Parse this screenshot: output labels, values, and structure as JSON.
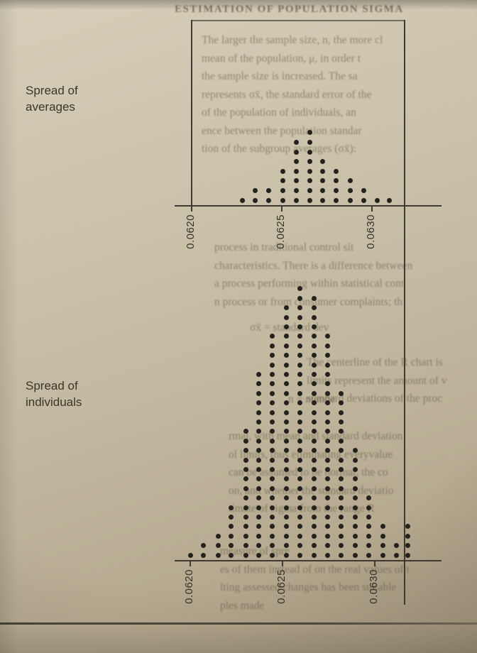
{
  "figure": {
    "averages_label": "Spread of\naverages",
    "individuals_label": "Spread of\nindividuals"
  },
  "colors": {
    "page_bg": "#c6bda6",
    "ink": "#3f3b33",
    "dot": "#24221d"
  },
  "ghost_text": {
    "heading": "ESTIMATION OF POPULATION SIGMA",
    "top_paragraph": [
      "The larger the sample size, n, the more cl",
      "mean of the population, μ, in order t",
      "the sample size is increased. The sa",
      "represents σx̄, the standard error of the",
      "of the population of individuals, an",
      "ence between the population standar",
      "tion of the subgroup averages (σx̄):"
    ],
    "mid_paragraph": [
      "process in traditional control sit",
      "characteristics. There is a difference between",
      "a process performing within statistical cont",
      "n process or from consumer complaints; th"
    ],
    "formula_1": [
      "σx̄ = standard dev"
    ],
    "formula_2": [
      "n = numbe"
    ],
    "right_column": [
      "The centerline of the R chart is",
      "limits represent the amount of v",
      "standard deviations of the proc"
    ],
    "lower_paragraph": [
      "rmal, with mean and standard deviation",
      "ol limits, thus eliminating everyvalue",
      "can be assumed to be normal, the co",
      "on, and whether the standard deviatio",
      "timate of sigma from the range R"
    ],
    "bottom_paragraph": [
      "measure of spre",
      "es of them instead of on the real values of t",
      "lting assessed changes has been suitable",
      "ples made"
    ]
  },
  "chart_data": [
    {
      "type": "dotplot",
      "title": "Spread of averages",
      "xlabel": "",
      "ylabel": "",
      "xlim": [
        0.0618,
        0.0632
      ],
      "x_ticks": [
        0.062,
        0.0625,
        0.063
      ],
      "x_tick_labels": [
        "0.0620",
        "0.0625",
        "0.0630"
      ],
      "columns": [
        {
          "x": 0.06228,
          "count": 1
        },
        {
          "x": 0.062354,
          "count": 2
        },
        {
          "x": 0.062429,
          "count": 2
        },
        {
          "x": 0.062504,
          "count": 4
        },
        {
          "x": 0.062579,
          "count": 7
        },
        {
          "x": 0.062654,
          "count": 8
        },
        {
          "x": 0.062728,
          "count": 5
        },
        {
          "x": 0.062803,
          "count": 4
        },
        {
          "x": 0.062878,
          "count": 3
        },
        {
          "x": 0.062953,
          "count": 2
        },
        {
          "x": 0.063028,
          "count": 1
        },
        {
          "x": 0.063098,
          "count": 1
        }
      ]
    },
    {
      "type": "dotplot",
      "title": "Spread of individuals",
      "xlabel": "",
      "ylabel": "",
      "xlim": [
        0.0618,
        0.0633
      ],
      "x_ticks": [
        0.062,
        0.0625,
        0.063
      ],
      "x_tick_labels": [
        "0.0620",
        "0.0625",
        "0.0630"
      ],
      "columns": [
        {
          "x": 0.062,
          "count": 1
        },
        {
          "x": 0.062073,
          "count": 2
        },
        {
          "x": 0.06215,
          "count": 3
        },
        {
          "x": 0.062223,
          "count": 6
        },
        {
          "x": 0.0623,
          "count": 14
        },
        {
          "x": 0.062373,
          "count": 20
        },
        {
          "x": 0.062446,
          "count": 24
        },
        {
          "x": 0.062523,
          "count": 27
        },
        {
          "x": 0.062596,
          "count": 29
        },
        {
          "x": 0.062673,
          "count": 28
        },
        {
          "x": 0.062746,
          "count": 24
        },
        {
          "x": 0.062819,
          "count": 18
        },
        {
          "x": 0.062896,
          "count": 12
        },
        {
          "x": 0.062969,
          "count": 7
        },
        {
          "x": 0.063046,
          "count": 4
        },
        {
          "x": 0.063119,
          "count": 2
        },
        {
          "x": 0.06318,
          "count": 4
        }
      ]
    }
  ]
}
